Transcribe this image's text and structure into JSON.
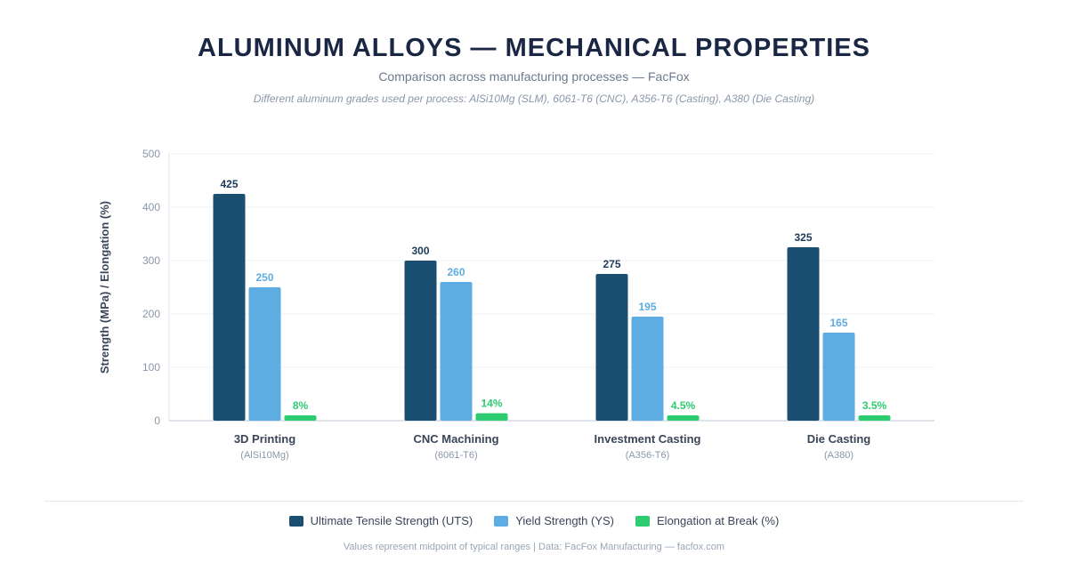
{
  "title": "ALUMINUM ALLOYS — MECHANICAL PROPERTIES",
  "subtitle": "Comparison across manufacturing processes — FacFox",
  "note": "Different aluminum grades used per process: AlSi10Mg (SLM), 6061-T6 (CNC), A356-T6 (Casting), A380 (Die Casting)",
  "footer": "Values represent midpoint of typical ranges | Data: FacFox Manufacturing — facfox.com",
  "chart_data": {
    "type": "bar",
    "ylabel": "Strength (MPa) / Elongation (%)",
    "xlabel": "",
    "ylim": [
      0,
      500
    ],
    "yticks": [
      0,
      100,
      200,
      300,
      400,
      500
    ],
    "grid": true,
    "legend_position": "bottom",
    "categories": [
      "3D Printing",
      "CNC Machining",
      "Investment Casting",
      "Die Casting"
    ],
    "category_sublabels": [
      "(AlSi10Mg)",
      "(6061-T6)",
      "(A356-T6)",
      "(A380)"
    ],
    "series": [
      {
        "name": "Ultimate Tensile Strength (UTS)",
        "color": "#1b4f72",
        "values": [
          425,
          300,
          275,
          325
        ],
        "labels": [
          "425",
          "300",
          "275",
          "325"
        ]
      },
      {
        "name": "Yield Strength (YS)",
        "color": "#5dade2",
        "values": [
          250,
          260,
          195,
          165
        ],
        "labels": [
          "250",
          "260",
          "195",
          "165"
        ]
      },
      {
        "name": "Elongation at Break (%)",
        "color": "#2ecc71",
        "values": [
          8,
          14,
          4.5,
          3.5
        ],
        "labels": [
          "8%",
          "14%",
          "4.5%",
          "3.5%"
        ]
      }
    ]
  }
}
